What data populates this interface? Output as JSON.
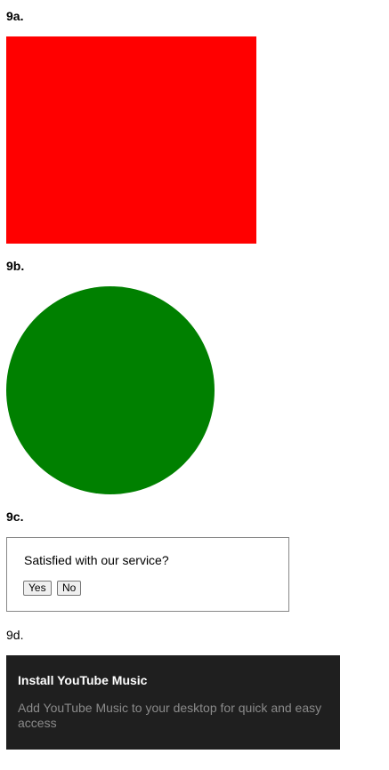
{
  "sections": {
    "a": {
      "label": "9a."
    },
    "b": {
      "label": "9b."
    },
    "c": {
      "label": "9c.",
      "question": "Satisfied with our service?",
      "yes_label": "Yes",
      "no_label": "No"
    },
    "d": {
      "label": "9d.",
      "title": "Install YouTube Music",
      "description": "Add YouTube Music to your desktop for quick and easy access"
    }
  },
  "colors": {
    "red_square": "#ff0000",
    "green_circle": "#008000",
    "banner_bg": "#1f1f1f",
    "banner_title": "#ffffff",
    "banner_desc": "#8a8a8a"
  }
}
